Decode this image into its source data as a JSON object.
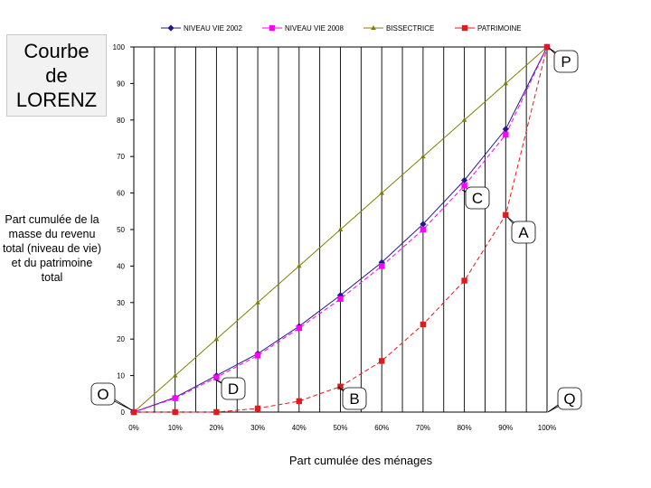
{
  "title": "Courbe\nde\nLORENZ",
  "chart_data": {
    "type": "line",
    "x": [
      0,
      10,
      20,
      30,
      40,
      50,
      60,
      70,
      80,
      90,
      100
    ],
    "xtick_labels": [
      "0%",
      "10%",
      "20%",
      "30%",
      "40%",
      "50%",
      "60%",
      "70%",
      "80%",
      "90%",
      "100%"
    ],
    "yticks": [
      0,
      10,
      20,
      30,
      40,
      50,
      60,
      70,
      80,
      90,
      100
    ],
    "ylim": [
      0,
      100
    ],
    "xlim": [
      0,
      100
    ],
    "xlabel": "Part cumulée des ménages",
    "ylabel": "Part cumulée de la masse du revenu total (niveau de vie) et du patrimoine total",
    "grid": "vertical lines",
    "legend_position": "top",
    "series": [
      {
        "name": "NIVEAU VIE 2002",
        "color": "#1f1a8a",
        "marker": "diamond",
        "values": [
          0,
          4,
          10,
          16,
          23.5,
          32,
          41,
          51.5,
          63.5,
          77.5,
          100
        ]
      },
      {
        "name": "NIVEAU VIE 2008",
        "color": "#ff00ff",
        "marker": "square",
        "values": [
          0,
          3.8,
          9.5,
          15.5,
          23,
          31,
          40,
          50,
          62,
          76,
          100
        ]
      },
      {
        "name": "BISSECTRICE",
        "color": "#808000",
        "marker": "triangle",
        "values": [
          0,
          10,
          20,
          30,
          40,
          50,
          60,
          70,
          80,
          90,
          100
        ]
      },
      {
        "name": "PATRIMOINE",
        "color": "#e31a1c",
        "marker": "square",
        "values": [
          0,
          0,
          0,
          1,
          3,
          7,
          14,
          24,
          36,
          54,
          100
        ]
      }
    ],
    "annotations": [
      "O",
      "D",
      "B",
      "C",
      "A",
      "P",
      "Q"
    ]
  }
}
